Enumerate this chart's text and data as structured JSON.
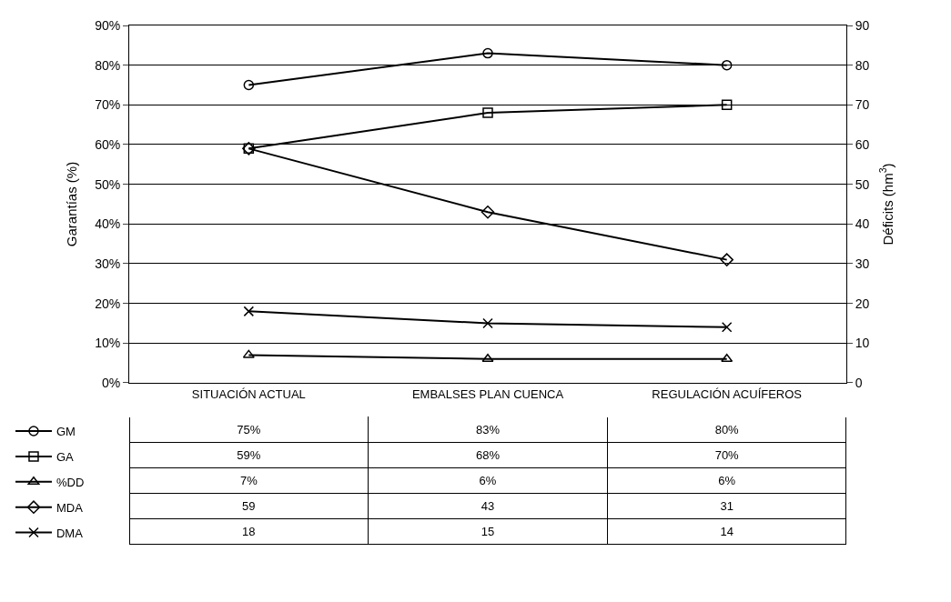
{
  "chart_data": {
    "type": "line",
    "ylabel": "Garantías (%)",
    "y2label": "Déficits (hm$^{3}$)",
    "categories": [
      "SITUACIÓN ACTUAL",
      "EMBALSES PLAN CUENCA",
      "REGULACIÓN ACUÍFEROS"
    ],
    "ylim": [
      0,
      90
    ],
    "yticks": [
      {
        "value": 0,
        "label": "0%"
      },
      {
        "value": 10,
        "label": "10%"
      },
      {
        "value": 20,
        "label": "20%"
      },
      {
        "value": 30,
        "label": "30%"
      },
      {
        "value": 40,
        "label": "40%"
      },
      {
        "value": 50,
        "label": "50%"
      },
      {
        "value": 60,
        "label": "60%"
      },
      {
        "value": 70,
        "label": "70%"
      },
      {
        "value": 80,
        "label": "80%"
      },
      {
        "value": 90,
        "label": "90%"
      }
    ],
    "y2lim": [
      0,
      90
    ],
    "y2ticks": [
      0,
      10,
      20,
      30,
      40,
      50,
      60,
      70,
      80,
      90
    ],
    "grid": "y",
    "legend": "bottom left",
    "series": [
      {
        "name": "GM",
        "color": "#000000",
        "marker": "circle",
        "values": [
          75,
          83,
          80
        ],
        "value_labels": [
          "75%",
          "83%",
          "80%"
        ]
      },
      {
        "name": "GA",
        "color": "#000000",
        "marker": "square",
        "values": [
          59,
          68,
          70
        ],
        "value_labels": [
          "59%",
          "68%",
          "70%"
        ]
      },
      {
        "name": "%DD",
        "color": "#000000",
        "marker": "triangle",
        "values": [
          7,
          6,
          6
        ],
        "value_labels": [
          "7%",
          "6%",
          "6%"
        ]
      },
      {
        "name": "MDA",
        "color": "#000000",
        "marker": "diamond",
        "axis": "y2",
        "values": [
          59,
          43,
          31
        ],
        "value_labels": [
          "59",
          "43",
          "31"
        ]
      },
      {
        "name": "DMA",
        "color": "#000000",
        "marker": "cross",
        "axis": "y2",
        "values": [
          18,
          15,
          14
        ],
        "value_labels": [
          "18",
          "15",
          "14"
        ]
      }
    ]
  }
}
